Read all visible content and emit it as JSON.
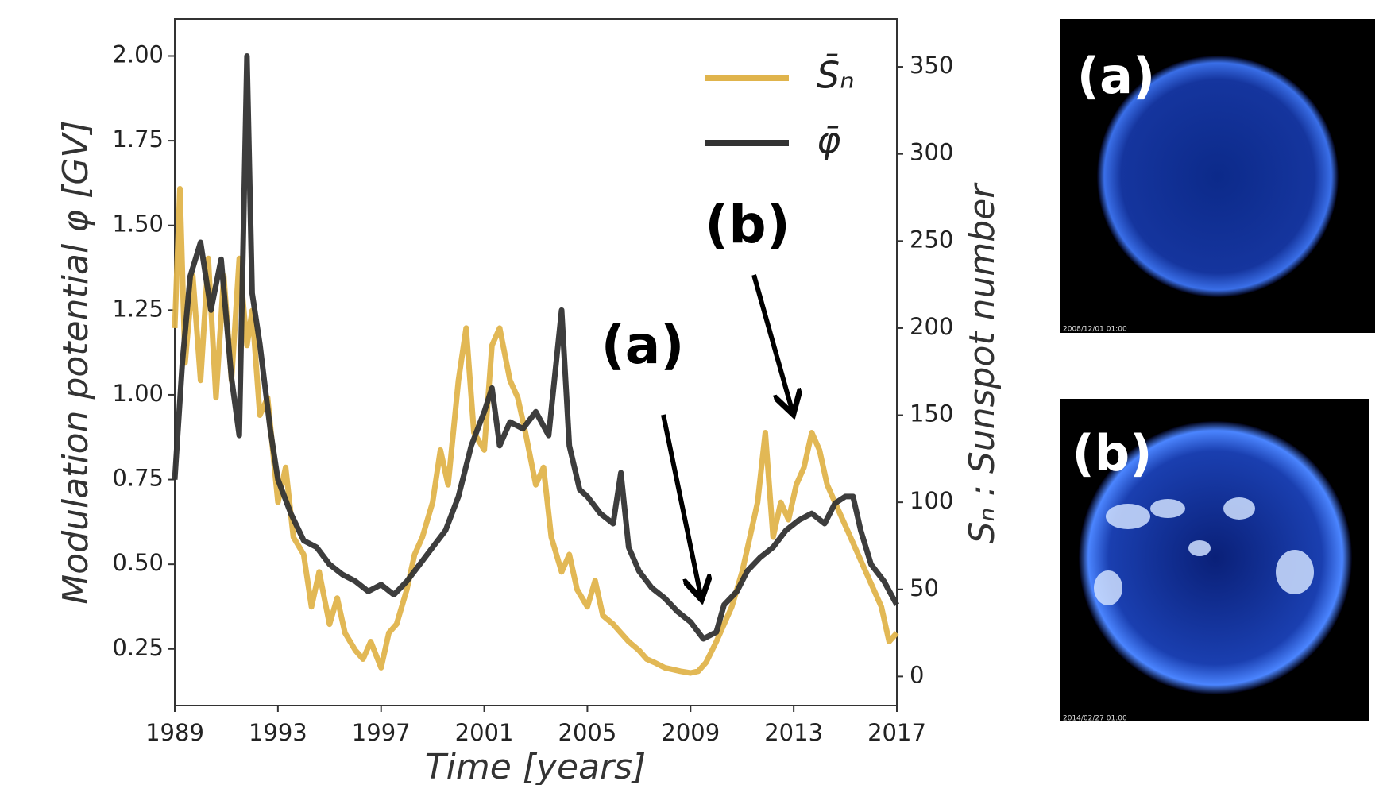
{
  "chart_data": {
    "type": "line",
    "xlabel": "Time [years]",
    "ylabel": "Modulation potential φ [GV]",
    "y2label": "Sₙ : Sunspot number",
    "xlim": [
      1989,
      2017
    ],
    "xticks": [
      1989,
      1993,
      1997,
      2001,
      2005,
      2009,
      2013,
      2017
    ],
    "ylim": [
      0.083,
      2.109
    ],
    "yticks": [
      {
        "value": 0.25,
        "label": "0.25"
      },
      {
        "value": 0.5,
        "label": "0.50"
      },
      {
        "value": 0.75,
        "label": "0.75"
      },
      {
        "value": 1,
        "label": "1.00"
      },
      {
        "value": 1.25,
        "label": "1.25"
      },
      {
        "value": 1.5,
        "label": "1.50"
      },
      {
        "value": 1.75,
        "label": "1.75"
      },
      {
        "value": 2,
        "label": "2.00"
      }
    ],
    "y2lim": [
      -16.7,
      377.4
    ],
    "y2ticks": [
      0,
      50,
      100,
      150,
      200,
      250,
      300,
      350
    ],
    "legend": "upper right",
    "series": [
      {
        "name": "S̄ₙ",
        "color": "#e0b44c",
        "axis": "y2",
        "x": [
          1989.0,
          1989.2,
          1989.4,
          1989.7,
          1990.0,
          1990.3,
          1990.6,
          1990.9,
          1991.2,
          1991.5,
          1991.8,
          1992.0,
          1992.3,
          1992.6,
          1993.0,
          1993.3,
          1993.6,
          1994.0,
          1994.3,
          1994.6,
          1995.0,
          1995.3,
          1995.6,
          1996.0,
          1996.3,
          1996.6,
          1997.0,
          1997.3,
          1997.6,
          1998.0,
          1998.3,
          1998.6,
          1999.0,
          1999.3,
          1999.6,
          2000.0,
          2000.3,
          2000.6,
          2001.0,
          2001.3,
          2001.6,
          2002.0,
          2002.3,
          2002.6,
          2003.0,
          2003.3,
          2003.6,
          2004.0,
          2004.3,
          2004.6,
          2005.0,
          2005.3,
          2005.6,
          2006.0,
          2006.3,
          2006.6,
          2007.0,
          2007.3,
          2007.6,
          2008.0,
          2008.3,
          2008.6,
          2009.0,
          2009.3,
          2009.6,
          2010.0,
          2010.3,
          2010.6,
          2011.0,
          2011.3,
          2011.6,
          2011.9,
          2012.2,
          2012.5,
          2012.8,
          2013.1,
          2013.4,
          2013.7,
          2014.0,
          2014.3,
          2014.6,
          2014.9,
          2015.2,
          2015.5,
          2015.8,
          2016.1,
          2016.4,
          2016.7,
          2017.0
        ],
        "values": [
          200,
          280,
          180,
          230,
          170,
          240,
          160,
          230,
          170,
          240,
          190,
          210,
          150,
          160,
          100,
          120,
          80,
          70,
          40,
          60,
          30,
          45,
          25,
          15,
          10,
          20,
          5,
          25,
          30,
          50,
          70,
          80,
          100,
          130,
          110,
          170,
          200,
          140,
          130,
          190,
          200,
          170,
          160,
          140,
          110,
          120,
          80,
          60,
          70,
          50,
          40,
          55,
          35,
          30,
          25,
          20,
          15,
          10,
          8,
          5,
          4,
          3,
          2,
          3,
          8,
          20,
          30,
          40,
          60,
          80,
          100,
          140,
          80,
          100,
          90,
          110,
          120,
          140,
          130,
          110,
          100,
          90,
          80,
          70,
          60,
          50,
          40,
          20,
          25
        ]
      },
      {
        "name": "φ̄",
        "color": "#333333",
        "x": [
          1989.0,
          1989.3,
          1989.6,
          1990.0,
          1990.4,
          1990.8,
          1991.2,
          1991.5,
          1991.8,
          1992.0,
          1992.3,
          1992.7,
          1993.0,
          1993.5,
          1994.0,
          1994.5,
          1995.0,
          1995.5,
          1996.0,
          1996.5,
          1997.0,
          1997.5,
          1998.0,
          1998.5,
          1999.0,
          1999.5,
          2000.0,
          2000.5,
          2001.0,
          2001.3,
          2001.6,
          2002.0,
          2002.5,
          2003.0,
          2003.5,
          2004.0,
          2004.3,
          2004.7,
          2005.0,
          2005.5,
          2006.0,
          2006.3,
          2006.6,
          2007.0,
          2007.5,
          2008.0,
          2008.5,
          2009.0,
          2009.5,
          2010.0,
          2010.3,
          2010.8,
          2011.2,
          2011.7,
          2012.2,
          2012.7,
          2013.2,
          2013.7,
          2014.2,
          2014.6,
          2015.0,
          2015.3,
          2015.6,
          2016.0,
          2016.5,
          2017.0
        ],
        "values": [
          0.75,
          1.1,
          1.35,
          1.45,
          1.25,
          1.4,
          1.05,
          0.88,
          2.0,
          1.3,
          1.15,
          0.9,
          0.75,
          0.65,
          0.57,
          0.55,
          0.5,
          0.47,
          0.45,
          0.42,
          0.44,
          0.41,
          0.45,
          0.5,
          0.55,
          0.6,
          0.7,
          0.85,
          0.95,
          1.02,
          0.85,
          0.92,
          0.9,
          0.95,
          0.88,
          1.25,
          0.85,
          0.72,
          0.7,
          0.65,
          0.62,
          0.77,
          0.55,
          0.48,
          0.43,
          0.4,
          0.36,
          0.33,
          0.28,
          0.3,
          0.38,
          0.42,
          0.48,
          0.52,
          0.55,
          0.6,
          0.63,
          0.65,
          0.62,
          0.68,
          0.7,
          0.7,
          0.6,
          0.5,
          0.45,
          0.38
        ]
      }
    ],
    "annotations": [
      {
        "text": "(a)"
      },
      {
        "text": "(b)"
      }
    ]
  },
  "images": [
    {
      "label": "(a)",
      "timestamp": "2008/12/01 01:00"
    },
    {
      "label": "(b)",
      "timestamp": "2014/02/27 01:00"
    }
  ]
}
